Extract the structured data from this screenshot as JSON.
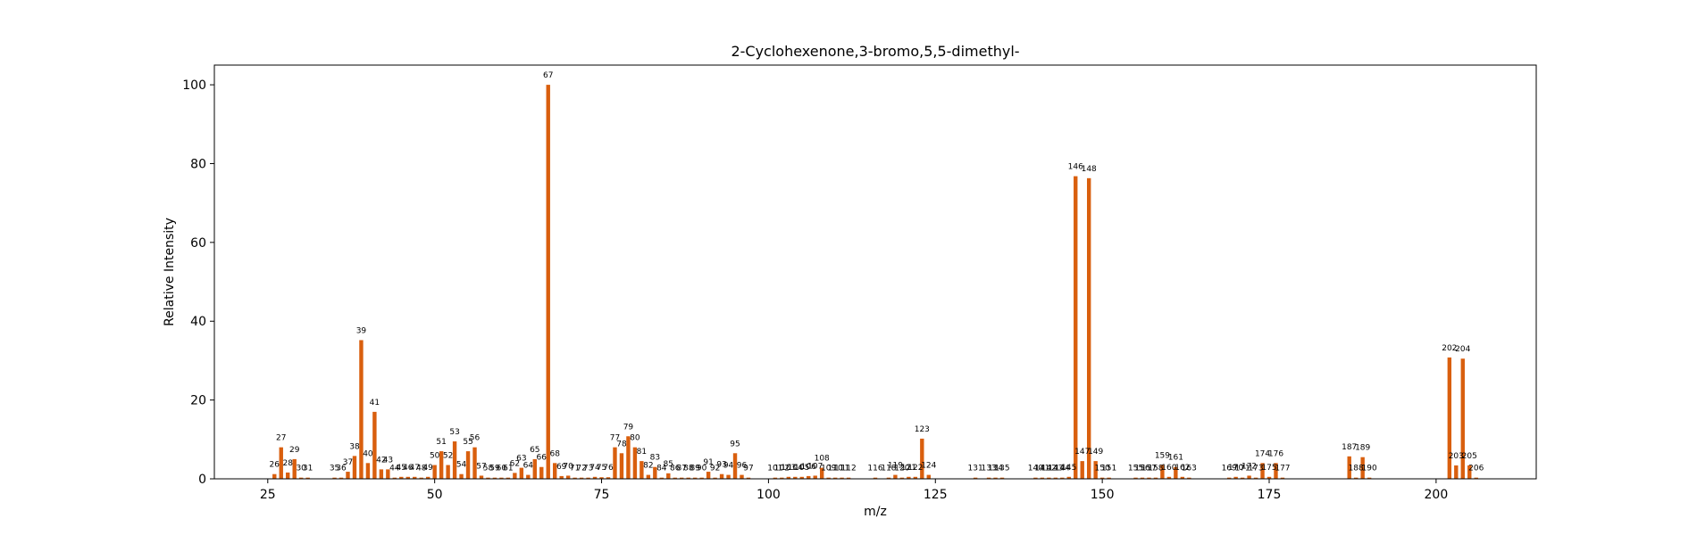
{
  "chart_data": {
    "type": "bar",
    "title": "2-Cyclohexenone,3-bromo,5,5-dimethyl-",
    "xlabel": "m/z",
    "ylabel": "Relative Intensity",
    "xlim": [
      17,
      215
    ],
    "ylim": [
      0,
      105
    ],
    "xticks": [
      25,
      50,
      75,
      100,
      125,
      150,
      175,
      200
    ],
    "yticks": [
      0,
      20,
      40,
      60,
      80,
      100
    ],
    "grid": false,
    "bar_color": "#d95f0e",
    "peaks": [
      {
        "mz": 26,
        "intensity": 1.2
      },
      {
        "mz": 27,
        "intensity": 8.0
      },
      {
        "mz": 28,
        "intensity": 1.6
      },
      {
        "mz": 29,
        "intensity": 5.0
      },
      {
        "mz": 30,
        "intensity": 0.3
      },
      {
        "mz": 31,
        "intensity": 0.3
      },
      {
        "mz": 35,
        "intensity": 0.3
      },
      {
        "mz": 36,
        "intensity": 0.3
      },
      {
        "mz": 37,
        "intensity": 1.8
      },
      {
        "mz": 38,
        "intensity": 5.8
      },
      {
        "mz": 39,
        "intensity": 35.2
      },
      {
        "mz": 40,
        "intensity": 4.0
      },
      {
        "mz": 41,
        "intensity": 17.0
      },
      {
        "mz": 42,
        "intensity": 2.4
      },
      {
        "mz": 43,
        "intensity": 2.4
      },
      {
        "mz": 44,
        "intensity": 0.3
      },
      {
        "mz": 45,
        "intensity": 0.5
      },
      {
        "mz": 46,
        "intensity": 0.5
      },
      {
        "mz": 47,
        "intensity": 0.5
      },
      {
        "mz": 48,
        "intensity": 0.3
      },
      {
        "mz": 49,
        "intensity": 0.5
      },
      {
        "mz": 50,
        "intensity": 3.5
      },
      {
        "mz": 51,
        "intensity": 7.0
      },
      {
        "mz": 52,
        "intensity": 3.5
      },
      {
        "mz": 53,
        "intensity": 9.5
      },
      {
        "mz": 54,
        "intensity": 1.2
      },
      {
        "mz": 55,
        "intensity": 7.0
      },
      {
        "mz": 56,
        "intensity": 8.0
      },
      {
        "mz": 57,
        "intensity": 0.8
      },
      {
        "mz": 58,
        "intensity": 0.3
      },
      {
        "mz": 59,
        "intensity": 0.3
      },
      {
        "mz": 60,
        "intensity": 0.3
      },
      {
        "mz": 61,
        "intensity": 0.3
      },
      {
        "mz": 62,
        "intensity": 1.5
      },
      {
        "mz": 63,
        "intensity": 2.8
      },
      {
        "mz": 64,
        "intensity": 1.0
      },
      {
        "mz": 65,
        "intensity": 5.0
      },
      {
        "mz": 66,
        "intensity": 3.0
      },
      {
        "mz": 67,
        "intensity": 100.0
      },
      {
        "mz": 68,
        "intensity": 4.0
      },
      {
        "mz": 69,
        "intensity": 0.7
      },
      {
        "mz": 70,
        "intensity": 0.8
      },
      {
        "mz": 71,
        "intensity": 0.3
      },
      {
        "mz": 72,
        "intensity": 0.3
      },
      {
        "mz": 73,
        "intensity": 0.3
      },
      {
        "mz": 74,
        "intensity": 0.5
      },
      {
        "mz": 75,
        "intensity": 0.4
      },
      {
        "mz": 76,
        "intensity": 0.4
      },
      {
        "mz": 77,
        "intensity": 8.0
      },
      {
        "mz": 78,
        "intensity": 6.5
      },
      {
        "mz": 79,
        "intensity": 10.8
      },
      {
        "mz": 80,
        "intensity": 8.0
      },
      {
        "mz": 81,
        "intensity": 4.5
      },
      {
        "mz": 82,
        "intensity": 1.0
      },
      {
        "mz": 83,
        "intensity": 3.0
      },
      {
        "mz": 84,
        "intensity": 0.3
      },
      {
        "mz": 85,
        "intensity": 1.4
      },
      {
        "mz": 86,
        "intensity": 0.3
      },
      {
        "mz": 87,
        "intensity": 0.3
      },
      {
        "mz": 88,
        "intensity": 0.3
      },
      {
        "mz": 89,
        "intensity": 0.3
      },
      {
        "mz": 90,
        "intensity": 0.3
      },
      {
        "mz": 91,
        "intensity": 1.8
      },
      {
        "mz": 92,
        "intensity": 0.3
      },
      {
        "mz": 93,
        "intensity": 1.2
      },
      {
        "mz": 94,
        "intensity": 1.0
      },
      {
        "mz": 95,
        "intensity": 6.5
      },
      {
        "mz": 96,
        "intensity": 1.0
      },
      {
        "mz": 97,
        "intensity": 0.3
      },
      {
        "mz": 101,
        "intensity": 0.3
      },
      {
        "mz": 102,
        "intensity": 0.3
      },
      {
        "mz": 103,
        "intensity": 0.5
      },
      {
        "mz": 104,
        "intensity": 0.5
      },
      {
        "mz": 105,
        "intensity": 0.5
      },
      {
        "mz": 106,
        "intensity": 0.7
      },
      {
        "mz": 107,
        "intensity": 0.8
      },
      {
        "mz": 108,
        "intensity": 2.8
      },
      {
        "mz": 109,
        "intensity": 0.3
      },
      {
        "mz": 110,
        "intensity": 0.3
      },
      {
        "mz": 111,
        "intensity": 0.3
      },
      {
        "mz": 112,
        "intensity": 0.3
      },
      {
        "mz": 116,
        "intensity": 0.3
      },
      {
        "mz": 118,
        "intensity": 0.3
      },
      {
        "mz": 119,
        "intensity": 1.0
      },
      {
        "mz": 120,
        "intensity": 0.3
      },
      {
        "mz": 121,
        "intensity": 0.5
      },
      {
        "mz": 122,
        "intensity": 0.5
      },
      {
        "mz": 123,
        "intensity": 10.2
      },
      {
        "mz": 124,
        "intensity": 1.0
      },
      {
        "mz": 131,
        "intensity": 0.3
      },
      {
        "mz": 133,
        "intensity": 0.3
      },
      {
        "mz": 134,
        "intensity": 0.3
      },
      {
        "mz": 135,
        "intensity": 0.3
      },
      {
        "mz": 140,
        "intensity": 0.3
      },
      {
        "mz": 141,
        "intensity": 0.3
      },
      {
        "mz": 142,
        "intensity": 0.3
      },
      {
        "mz": 143,
        "intensity": 0.3
      },
      {
        "mz": 144,
        "intensity": 0.3
      },
      {
        "mz": 145,
        "intensity": 0.5
      },
      {
        "mz": 146,
        "intensity": 76.8
      },
      {
        "mz": 147,
        "intensity": 4.5
      },
      {
        "mz": 148,
        "intensity": 76.3
      },
      {
        "mz": 149,
        "intensity": 4.5
      },
      {
        "mz": 150,
        "intensity": 0.3
      },
      {
        "mz": 151,
        "intensity": 0.3
      },
      {
        "mz": 155,
        "intensity": 0.3
      },
      {
        "mz": 156,
        "intensity": 0.3
      },
      {
        "mz": 157,
        "intensity": 0.3
      },
      {
        "mz": 158,
        "intensity": 0.3
      },
      {
        "mz": 159,
        "intensity": 3.5
      },
      {
        "mz": 160,
        "intensity": 0.5
      },
      {
        "mz": 161,
        "intensity": 3.0
      },
      {
        "mz": 162,
        "intensity": 0.5
      },
      {
        "mz": 163,
        "intensity": 0.3
      },
      {
        "mz": 169,
        "intensity": 0.3
      },
      {
        "mz": 170,
        "intensity": 0.5
      },
      {
        "mz": 171,
        "intensity": 0.3
      },
      {
        "mz": 172,
        "intensity": 0.8
      },
      {
        "mz": 173,
        "intensity": 0.3
      },
      {
        "mz": 174,
        "intensity": 4.0
      },
      {
        "mz": 175,
        "intensity": 0.5
      },
      {
        "mz": 176,
        "intensity": 4.0
      },
      {
        "mz": 177,
        "intensity": 0.3
      },
      {
        "mz": 187,
        "intensity": 5.7
      },
      {
        "mz": 188,
        "intensity": 0.3
      },
      {
        "mz": 189,
        "intensity": 5.5
      },
      {
        "mz": 190,
        "intensity": 0.3
      },
      {
        "mz": 202,
        "intensity": 30.8
      },
      {
        "mz": 203,
        "intensity": 3.4
      },
      {
        "mz": 204,
        "intensity": 30.5
      },
      {
        "mz": 205,
        "intensity": 3.4
      },
      {
        "mz": 206,
        "intensity": 0.3
      }
    ]
  }
}
